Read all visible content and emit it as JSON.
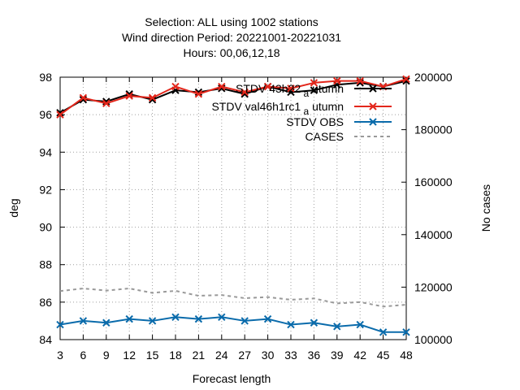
{
  "chart_data": {
    "type": "line",
    "title_lines": [
      "Selection: ALL using  1002 stations",
      "Wind direction   Period: 20221001-20221031",
      "Hours:  00,06,12,18"
    ],
    "xlabel": "Forecast length",
    "ylabel": "deg",
    "y2label": "No cases",
    "x": [
      3,
      6,
      9,
      12,
      15,
      18,
      21,
      24,
      27,
      30,
      33,
      36,
      39,
      42,
      45,
      48
    ],
    "xlim": [
      3,
      48
    ],
    "ylim": [
      84,
      98
    ],
    "y2lim": [
      100000,
      200000
    ],
    "yticks": [
      84,
      86,
      88,
      90,
      92,
      94,
      96,
      98
    ],
    "y2ticks": [
      100000,
      120000,
      140000,
      160000,
      180000,
      200000
    ],
    "grid": true,
    "legend_position": "top-right",
    "series": [
      {
        "name": "STDV 43h22",
        "name_sub": "a",
        "name_suffix": "utumn",
        "axis": "y1",
        "color": "#000000",
        "dash": "",
        "marker": "x",
        "values": [
          96.1,
          96.8,
          96.7,
          97.1,
          96.8,
          97.3,
          97.2,
          97.4,
          97.1,
          97.5,
          97.2,
          97.3,
          97.6,
          97.7,
          97.5,
          97.8
        ]
      },
      {
        "name": "STDV val46h1rc1",
        "name_sub": "a",
        "name_suffix": "utumn",
        "axis": "y1",
        "color": "#e3261b",
        "dash": "",
        "marker": "x",
        "values": [
          96.0,
          96.9,
          96.6,
          97.0,
          96.9,
          97.5,
          97.1,
          97.5,
          97.2,
          97.5,
          97.4,
          97.7,
          97.8,
          97.8,
          97.5,
          97.9
        ]
      },
      {
        "name": "STDV OBS",
        "name_sub": "",
        "name_suffix": "",
        "axis": "y1",
        "color": "#0a6bab",
        "dash": "",
        "marker": "x",
        "values": [
          84.8,
          85.0,
          84.9,
          85.1,
          85.0,
          85.2,
          85.1,
          85.2,
          85.0,
          85.1,
          84.8,
          84.9,
          84.7,
          84.8,
          84.4,
          84.4
        ]
      },
      {
        "name": "CASES",
        "name_sub": "",
        "name_suffix": "",
        "axis": "y2",
        "color": "#999999",
        "dash": "4,4",
        "marker": "",
        "values": [
          118500,
          119500,
          118700,
          119500,
          117800,
          118600,
          116700,
          117000,
          115800,
          116200,
          115200,
          115700,
          113800,
          114300,
          112600,
          113300
        ]
      }
    ]
  }
}
